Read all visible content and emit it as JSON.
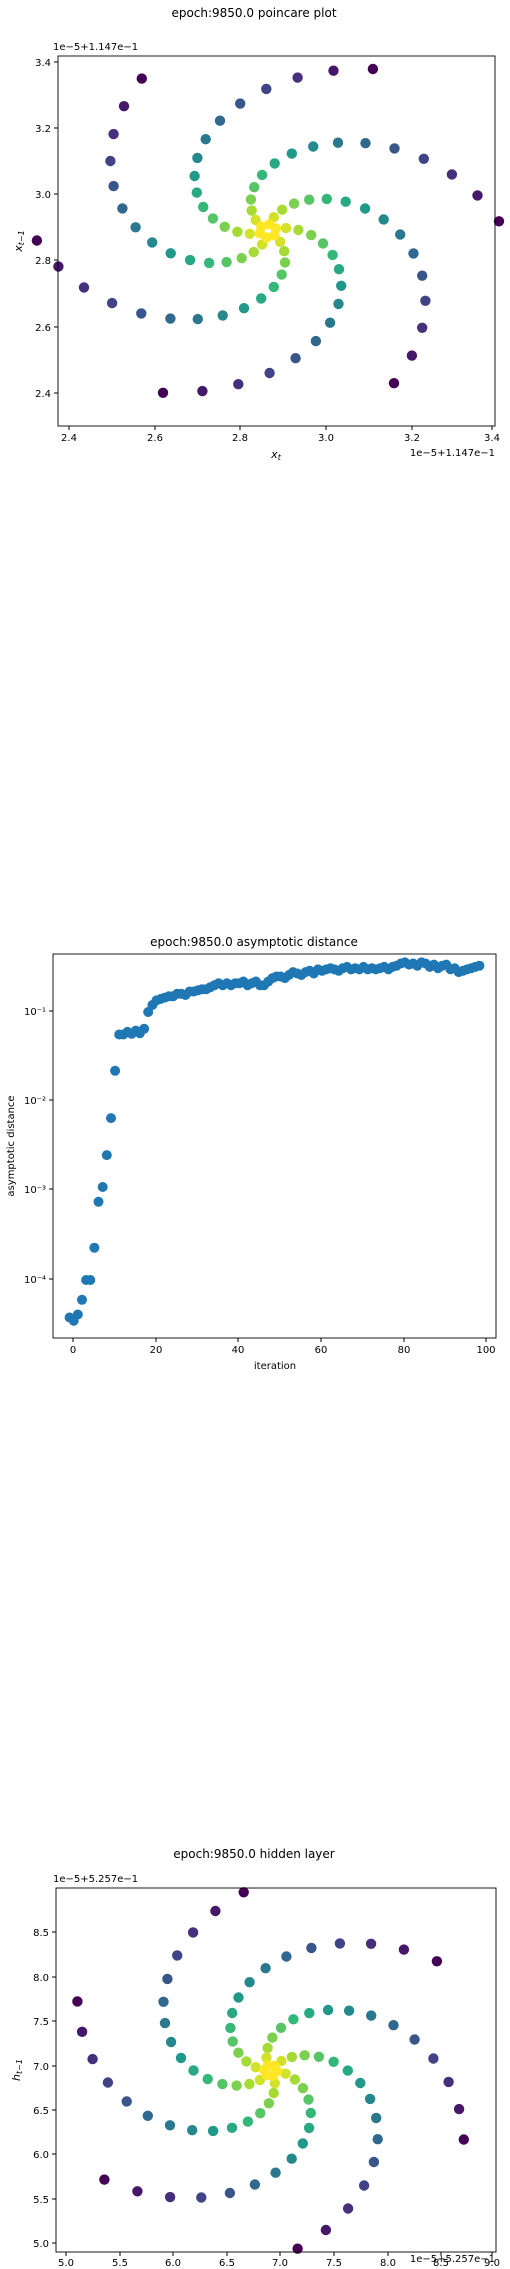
{
  "chart_data": [
    {
      "type": "scatter",
      "title": "epoch:9850.0 poincare plot",
      "xlabel": "x_t",
      "ylabel": "x_{t-1}",
      "offset_text_x": "1e−5+1.147e−1",
      "offset_text_y": "1e−5+1.147e−1",
      "xlim": [
        2.38,
        3.4
      ],
      "ylim": [
        2.3,
        3.4
      ],
      "xticks": [
        "2.4",
        "2.6",
        "2.8",
        "3.0",
        "3.2",
        "3.4"
      ],
      "yticks": [
        "2.4",
        "2.6",
        "2.8",
        "3.0",
        "3.2",
        "3.4"
      ],
      "colormap": "viridis",
      "grid": false,
      "spiral": {
        "center": [
          2.87,
          2.88
        ],
        "arms": 6,
        "points_per_arm": 16,
        "r_min": 0.02,
        "r_max": 0.54,
        "turn": 2.4,
        "start_angle": 1.1,
        "xscale": 1.0,
        "yscale": 1.0
      }
    },
    {
      "type": "scatter",
      "title": "epoch:9850.0 asymptotic distance",
      "xlabel": "iteration",
      "ylabel": "asymptotic distance",
      "xlim": [
        -4,
        103
      ],
      "ylim_log10": [
        -4.65,
        -0.35
      ],
      "xticks": [
        "0",
        "20",
        "40",
        "60",
        "80",
        "100"
      ],
      "yticks": [
        "10⁻⁴",
        "10⁻³",
        "10⁻²",
        "10⁻¹"
      ],
      "yscale": "log",
      "grid": false,
      "color": "#1f77b4",
      "x": [
        0,
        1,
        2,
        3,
        4,
        5,
        6,
        7,
        8,
        9,
        10,
        11,
        12,
        13,
        14,
        15,
        16,
        17,
        18,
        19,
        20,
        21,
        22,
        23,
        24,
        25,
        26,
        27,
        28,
        29,
        30,
        31,
        32,
        33,
        34,
        35,
        36,
        37,
        38,
        39,
        40,
        41,
        42,
        43,
        44,
        45,
        46,
        47,
        48,
        49,
        50,
        51,
        52,
        53,
        54,
        55,
        56,
        57,
        58,
        59,
        60,
        61,
        62,
        63,
        64,
        65,
        66,
        67,
        68,
        69,
        70,
        71,
        72,
        73,
        74,
        75,
        76,
        77,
        78,
        79,
        80,
        81,
        82,
        83,
        84,
        85,
        86,
        87,
        88,
        89,
        90,
        91,
        92,
        93,
        94,
        95,
        96,
        97,
        98,
        99
      ],
      "y": [
        3.8e-05,
        3.5e-05,
        4.1e-05,
        6e-05,
        0.0001,
        0.0001,
        0.00023,
        0.00075,
        0.0011,
        0.0025,
        0.0065,
        0.022,
        0.056,
        0.056,
        0.06,
        0.057,
        0.062,
        0.058,
        0.065,
        0.1,
        0.12,
        0.135,
        0.14,
        0.145,
        0.15,
        0.15,
        0.16,
        0.16,
        0.155,
        0.17,
        0.17,
        0.175,
        0.18,
        0.18,
        0.19,
        0.2,
        0.21,
        0.2,
        0.21,
        0.2,
        0.21,
        0.21,
        0.22,
        0.2,
        0.21,
        0.22,
        0.2,
        0.2,
        0.22,
        0.24,
        0.25,
        0.25,
        0.24,
        0.26,
        0.28,
        0.27,
        0.26,
        0.28,
        0.29,
        0.27,
        0.3,
        0.29,
        0.3,
        0.31,
        0.3,
        0.29,
        0.31,
        0.32,
        0.3,
        0.31,
        0.3,
        0.32,
        0.3,
        0.31,
        0.3,
        0.31,
        0.32,
        0.3,
        0.32,
        0.33,
        0.35,
        0.36,
        0.34,
        0.35,
        0.33,
        0.36,
        0.35,
        0.32,
        0.34,
        0.31,
        0.33,
        0.34,
        0.3,
        0.31,
        0.28,
        0.29,
        0.3,
        0.31,
        0.32,
        0.33
      ]
    },
    {
      "type": "scatter",
      "title": "epoch:9850.0 hidden layer",
      "xlabel": "h_t",
      "ylabel": "h_{t-1}",
      "offset_text_x": "1e−5+5.257e−1",
      "offset_text_y": "1e−5+5.257e−1",
      "xlim": [
        4.95,
        9.05
      ],
      "ylim": [
        4.9,
        8.85
      ],
      "xticks": [
        "5.0",
        "5.5",
        "6.0",
        "6.5",
        "7.0",
        "7.5",
        "8.0",
        "8.5",
        "9.0"
      ],
      "yticks": [
        "5.0",
        "5.5",
        "6.0",
        "6.5",
        "7.0",
        "7.5",
        "8.0",
        "8.5"
      ],
      "colormap": "viridis",
      "grid": false,
      "spiral": {
        "center": [
          6.95,
          6.87
        ],
        "arms": 6,
        "points_per_arm": 16,
        "r_min": 0.06,
        "r_max": 1.95,
        "turn": 2.4,
        "start_angle": 1.7,
        "xscale": 1.0,
        "yscale": 1.0
      }
    }
  ]
}
